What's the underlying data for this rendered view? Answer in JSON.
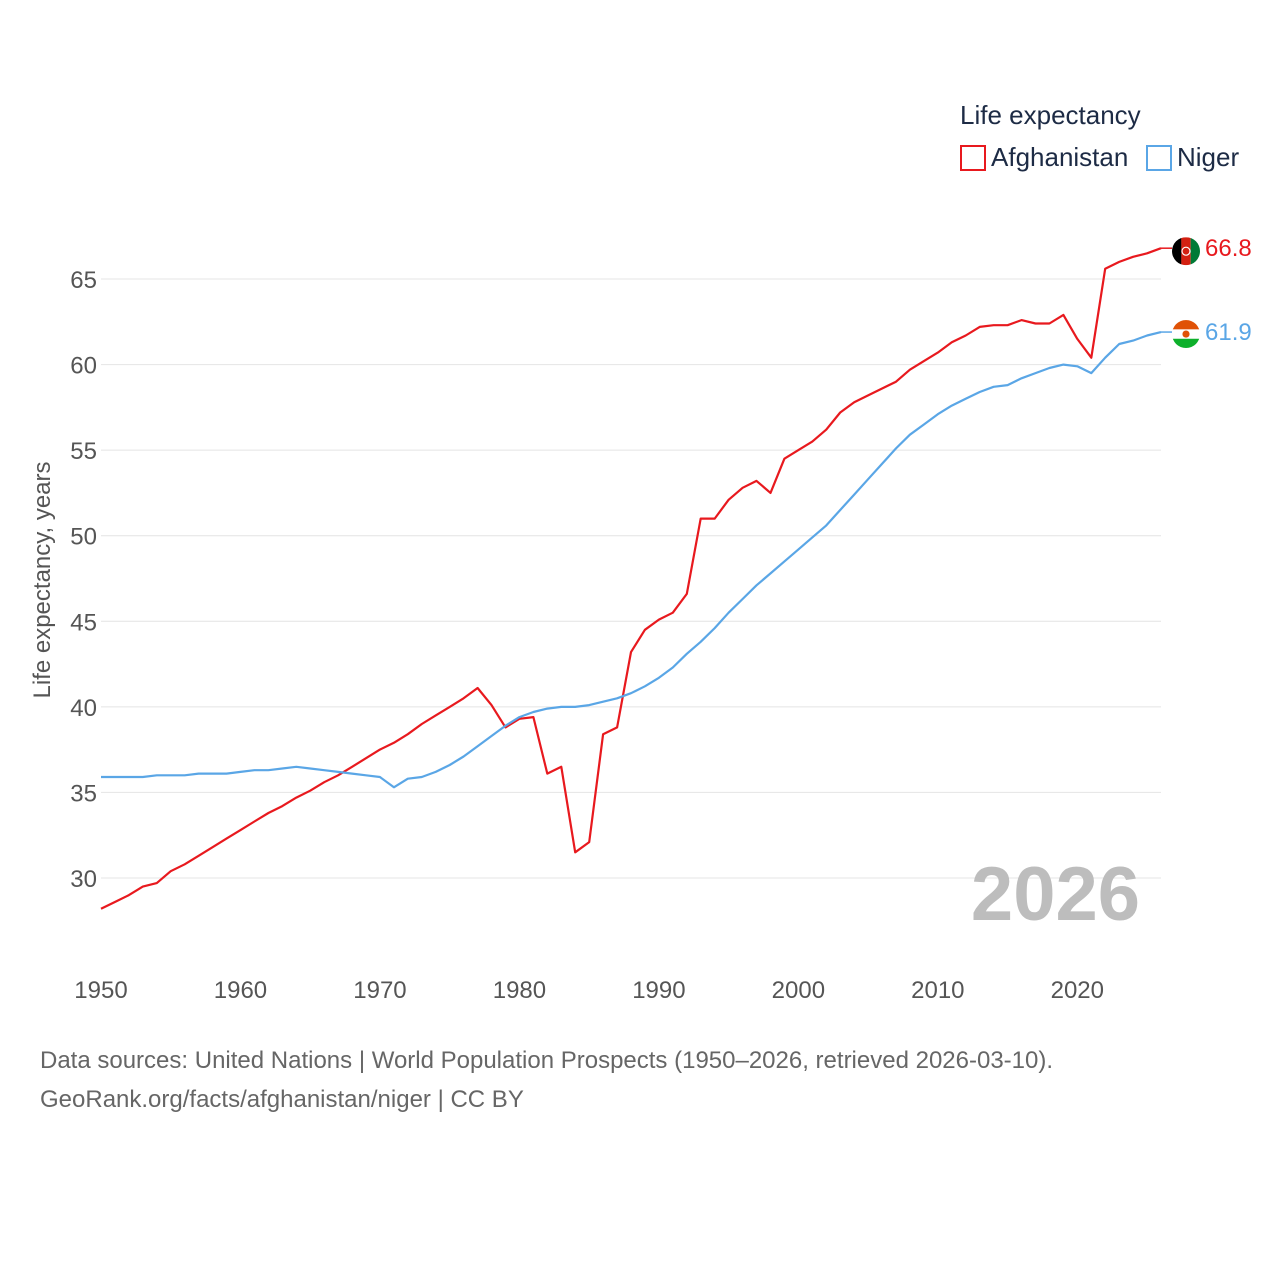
{
  "chart_data": {
    "type": "line",
    "ylabel": "Life expectancy, years",
    "xlim": [
      1950,
      2026
    ],
    "ylim": [
      26,
      70
    ],
    "x_ticks": [
      1950,
      1960,
      1970,
      1980,
      1990,
      2000,
      2010,
      2020
    ],
    "y_ticks": [
      30,
      35,
      40,
      45,
      50,
      55,
      60,
      65
    ],
    "grid": true,
    "legend": {
      "title": "Life expectancy",
      "placement": "top-right"
    },
    "year_label": "2026",
    "series": [
      {
        "name": "Afghanistan",
        "color": "#e8191e",
        "end_label": "66.8",
        "x": [
          1950,
          1951,
          1952,
          1953,
          1954,
          1955,
          1956,
          1957,
          1958,
          1959,
          1960,
          1961,
          1962,
          1963,
          1964,
          1965,
          1966,
          1967,
          1968,
          1969,
          1970,
          1971,
          1972,
          1973,
          1974,
          1975,
          1976,
          1977,
          1978,
          1979,
          1980,
          1981,
          1982,
          1983,
          1984,
          1985,
          1986,
          1987,
          1988,
          1989,
          1990,
          1991,
          1992,
          1993,
          1994,
          1995,
          1996,
          1997,
          1998,
          1999,
          2000,
          2001,
          2002,
          2003,
          2004,
          2005,
          2006,
          2007,
          2008,
          2009,
          2010,
          2011,
          2012,
          2013,
          2014,
          2015,
          2016,
          2017,
          2018,
          2019,
          2020,
          2021,
          2022,
          2023,
          2024,
          2025,
          2026
        ],
        "y": [
          28.2,
          28.6,
          29.0,
          29.5,
          29.7,
          30.4,
          30.8,
          31.3,
          31.8,
          32.3,
          32.8,
          33.3,
          33.8,
          34.2,
          34.7,
          35.1,
          35.6,
          36.0,
          36.5,
          37.0,
          37.5,
          37.9,
          38.4,
          39.0,
          39.5,
          40.0,
          40.5,
          41.1,
          40.1,
          38.8,
          39.3,
          39.4,
          36.1,
          36.5,
          31.5,
          32.1,
          38.4,
          38.8,
          43.2,
          44.5,
          45.1,
          45.5,
          46.6,
          51.0,
          51.0,
          52.1,
          52.8,
          53.2,
          52.5,
          54.5,
          55.0,
          55.5,
          56.2,
          57.2,
          57.8,
          58.2,
          58.6,
          59.0,
          59.7,
          60.2,
          60.7,
          61.3,
          61.7,
          62.2,
          62.3,
          62.3,
          62.6,
          62.4,
          62.4,
          62.9,
          61.5,
          60.4,
          65.6,
          66.0,
          66.3,
          66.5,
          66.8
        ]
      },
      {
        "name": "Niger",
        "color": "#5aa6e6",
        "end_label": "61.9",
        "x": [
          1950,
          1951,
          1952,
          1953,
          1954,
          1955,
          1956,
          1957,
          1958,
          1959,
          1960,
          1961,
          1962,
          1963,
          1964,
          1965,
          1966,
          1967,
          1968,
          1969,
          1970,
          1971,
          1972,
          1973,
          1974,
          1975,
          1976,
          1977,
          1978,
          1979,
          1980,
          1981,
          1982,
          1983,
          1984,
          1985,
          1986,
          1987,
          1988,
          1989,
          1990,
          1991,
          1992,
          1993,
          1994,
          1995,
          1996,
          1997,
          1998,
          1999,
          2000,
          2001,
          2002,
          2003,
          2004,
          2005,
          2006,
          2007,
          2008,
          2009,
          2010,
          2011,
          2012,
          2013,
          2014,
          2015,
          2016,
          2017,
          2018,
          2019,
          2020,
          2021,
          2022,
          2023,
          2024,
          2025,
          2026
        ],
        "y": [
          35.9,
          35.9,
          35.9,
          35.9,
          36.0,
          36.0,
          36.0,
          36.1,
          36.1,
          36.1,
          36.2,
          36.3,
          36.3,
          36.4,
          36.5,
          36.4,
          36.3,
          36.2,
          36.1,
          36.0,
          35.9,
          35.3,
          35.8,
          35.9,
          36.2,
          36.6,
          37.1,
          37.7,
          38.3,
          38.9,
          39.4,
          39.7,
          39.9,
          40.0,
          40.0,
          40.1,
          40.3,
          40.5,
          40.8,
          41.2,
          41.7,
          42.3,
          43.1,
          43.8,
          44.6,
          45.5,
          46.3,
          47.1,
          47.8,
          48.5,
          49.2,
          49.9,
          50.6,
          51.5,
          52.4,
          53.3,
          54.2,
          55.1,
          55.9,
          56.5,
          57.1,
          57.6,
          58.0,
          58.4,
          58.7,
          58.8,
          59.2,
          59.5,
          59.8,
          60.0,
          59.9,
          59.5,
          60.4,
          61.2,
          61.4,
          61.7,
          61.9
        ]
      }
    ]
  },
  "footer": {
    "line1": "Data sources: United Nations | World Population Prospects (1950–2026, retrieved 2026-03-10).",
    "line2": "GeoRank.org/facts/afghanistan/niger | CC BY"
  },
  "flags": {
    "afghanistan": {
      "colors": [
        "#000000",
        "#d32011",
        "#007a36"
      ],
      "icon": "afghanistan-flag-icon"
    },
    "niger": {
      "colors": [
        "#e05206",
        "#ffffff",
        "#0db02b"
      ],
      "icon": "niger-flag-icon"
    }
  }
}
